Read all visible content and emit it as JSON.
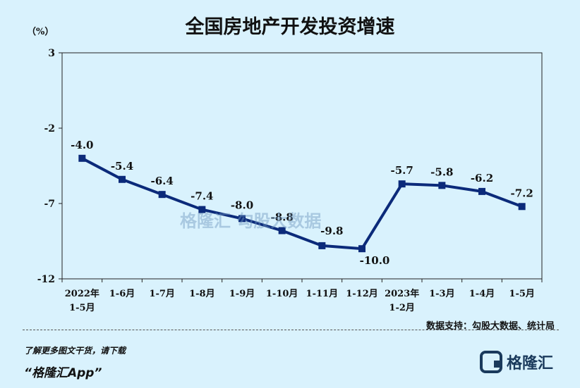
{
  "header": {
    "title": "全国房地产开发投资增速",
    "unit": "（%）"
  },
  "source": "数据支持：勾股大数据、统计局",
  "footer": {
    "promo_line": "了解更多图文干货，请下载",
    "promo_app": "“格隆汇App”",
    "logo_text": "格隆汇"
  },
  "watermark": "格隆汇   勾股大数据",
  "colors": {
    "line": "#0b2a7a",
    "background": "#d9f2fd",
    "plot_background": "#d9f2fd"
  },
  "chart_data": {
    "type": "line",
    "title": "全国房地产开发投资增速",
    "ylabel": "（%）",
    "ylim": [
      -12,
      3
    ],
    "yticks": [
      3,
      -2,
      -7,
      -12
    ],
    "categories": [
      [
        "2022年",
        "1-5月"
      ],
      [
        "1-6月"
      ],
      [
        "1-7月"
      ],
      [
        "1-8月"
      ],
      [
        "1-9月"
      ],
      [
        "1-10月"
      ],
      [
        "1-11月"
      ],
      [
        "1-12月"
      ],
      [
        "2023年",
        "1-2月"
      ],
      [
        "1-3月"
      ],
      [
        "1-4月"
      ],
      [
        "1-5月"
      ]
    ],
    "values": [
      -4.0,
      -5.4,
      -6.4,
      -7.4,
      -8.0,
      -8.8,
      -9.8,
      -10.0,
      -5.7,
      -5.8,
      -6.2,
      -7.2
    ],
    "labels": [
      "-4.0",
      "-5.4",
      "-6.4",
      "-7.4",
      "-8.0",
      "-8.8",
      "-9.8",
      "-10.0",
      "-5.7",
      "-5.8",
      "-6.2",
      "-7.2"
    ],
    "grid": false,
    "legend": "none"
  }
}
